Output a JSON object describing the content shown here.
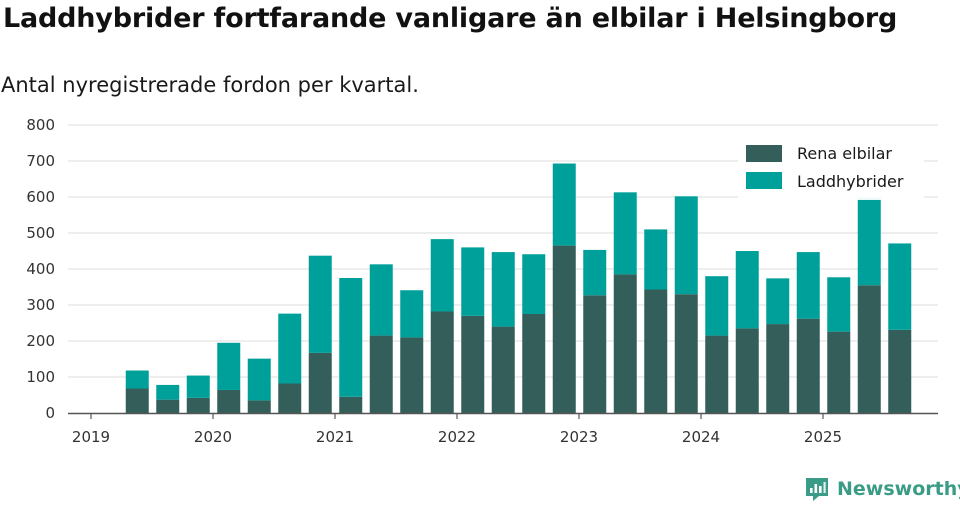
{
  "header": {
    "title": "Laddhybrider fortfarande vanligare än elbilar i Helsingborg",
    "subtitle": "Antal nyregistrerade fordon per kvartal."
  },
  "brand": {
    "name": "Newsworthy",
    "icon": "newsworthy-logo-icon",
    "color": "#3a9b86"
  },
  "chart_data": {
    "type": "bar",
    "stacked": true,
    "title": "Laddhybrider fortfarande vanligare än elbilar i Helsingborg",
    "subtitle": "Antal nyregistrerade fordon per kvartal.",
    "xlabel": "",
    "ylabel": "",
    "ylim": [
      0,
      800
    ],
    "yticks": [
      0,
      100,
      200,
      300,
      400,
      500,
      600,
      700,
      800
    ],
    "xtick_labels": [
      "2019",
      "2020",
      "2021",
      "2022",
      "2023",
      "2024",
      "2025"
    ],
    "grid": true,
    "legend_position": "top-right",
    "categories": [
      "2019 Q2",
      "2019 Q3",
      "2019 Q4",
      "2020 Q1",
      "2020 Q2",
      "2020 Q3",
      "2020 Q4",
      "2021 Q1",
      "2021 Q2",
      "2021 Q3",
      "2021 Q4",
      "2022 Q1",
      "2022 Q2",
      "2022 Q3",
      "2022 Q4",
      "2023 Q1",
      "2023 Q2",
      "2023 Q3",
      "2023 Q4",
      "2024 Q1",
      "2024 Q2",
      "2024 Q3",
      "2024 Q4",
      "2025 Q1",
      "2025 Q2",
      "2025 Q3"
    ],
    "series": [
      {
        "name": "Rena elbilar",
        "color": "#345e5a",
        "values": [
          68,
          37,
          42,
          64,
          35,
          82,
          167,
          45,
          215,
          210,
          282,
          270,
          240,
          275,
          465,
          327,
          385,
          343,
          330,
          215,
          235,
          247,
          262,
          226,
          355,
          231
        ]
      },
      {
        "name": "Laddhybrider",
        "color": "#00a09a",
        "values": [
          50,
          41,
          62,
          131,
          116,
          194,
          270,
          330,
          198,
          131,
          201,
          190,
          207,
          166,
          228,
          126,
          228,
          167,
          272,
          165,
          215,
          127,
          185,
          151,
          242,
          240
        ]
      }
    ]
  }
}
